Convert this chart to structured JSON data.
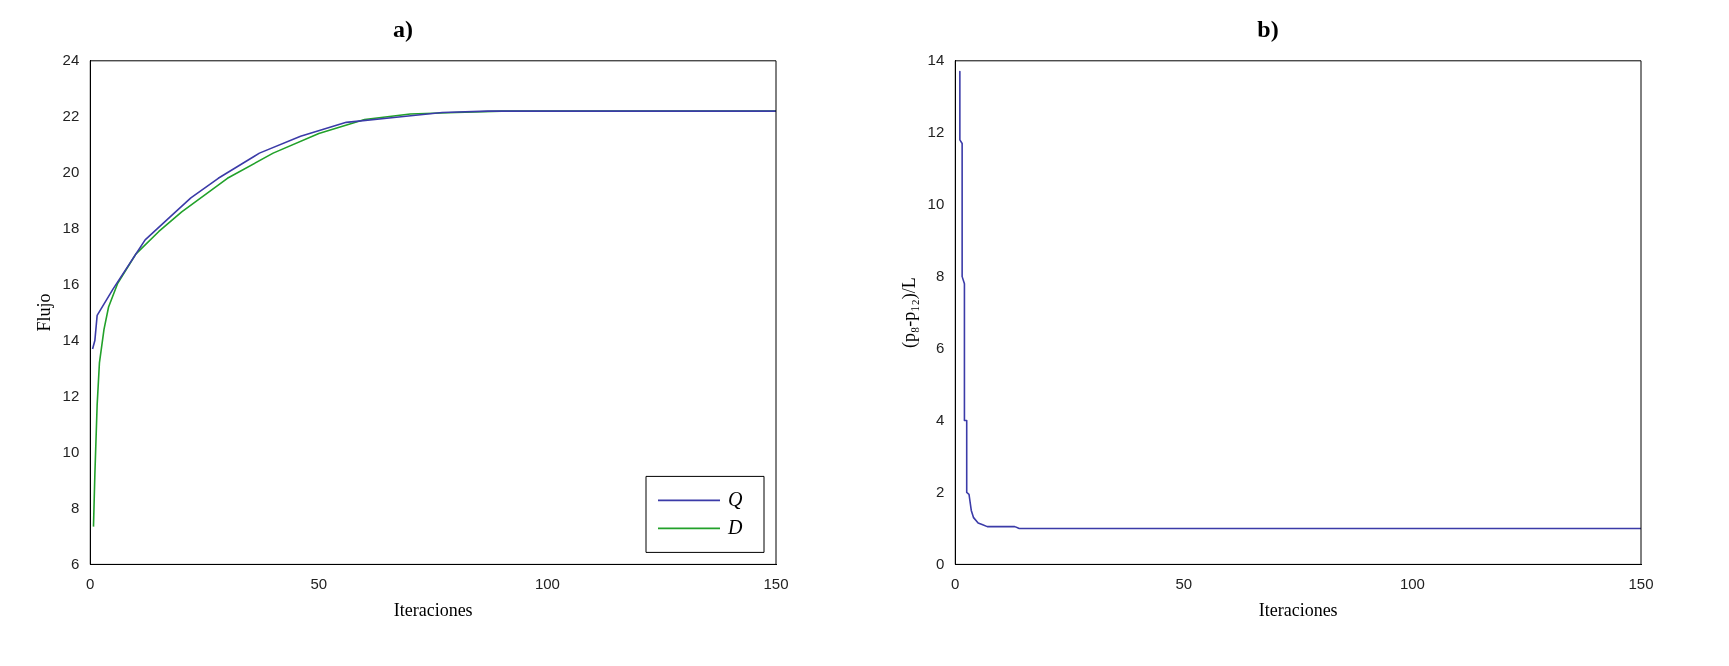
{
  "chart_data": [
    {
      "type": "line",
      "title": "a)",
      "xlabel": "Iteraciones",
      "ylabel": "Flujo",
      "xlim": [
        0,
        150
      ],
      "xticks": [
        0,
        50,
        100,
        150
      ],
      "ylim": [
        6,
        24
      ],
      "yticks": [
        6,
        8,
        10,
        12,
        14,
        16,
        18,
        20,
        22,
        24
      ],
      "legend": "bottom right",
      "series": [
        {
          "name": "Q",
          "color": "#3b3ba8",
          "x": [
            0.5,
            1,
            1.5,
            5,
            7,
            12,
            18,
            22,
            28,
            37,
            46,
            56,
            68,
            77,
            87,
            150
          ],
          "values": [
            13.7,
            14,
            14.9,
            15.85,
            16.35,
            17.6,
            18.5,
            19.1,
            19.8,
            20.7,
            21.3,
            21.8,
            22,
            22.15,
            22.2,
            22.2
          ]
        },
        {
          "name": "D",
          "color": "#22a12a",
          "x": [
            0.7,
            1,
            1.5,
            2,
            3,
            4,
            6,
            10,
            15,
            20,
            30,
            40,
            50,
            60,
            70,
            80,
            90,
            150
          ],
          "values": [
            7.35,
            9.2,
            11.7,
            13.2,
            14.4,
            15.2,
            16.05,
            17.1,
            17.9,
            18.6,
            19.8,
            20.7,
            21.4,
            21.9,
            22.1,
            22.15,
            22.2,
            22.2
          ]
        }
      ]
    },
    {
      "type": "line",
      "title": "b)",
      "xlabel": "Iteraciones",
      "ylabel": "(p₈-p₁₂)/L",
      "xlim": [
        0,
        150
      ],
      "xticks": [
        0,
        50,
        100,
        150
      ],
      "ylim": [
        0,
        14
      ],
      "yticks": [
        0,
        2,
        4,
        6,
        8,
        10,
        12,
        14
      ],
      "series": [
        {
          "color": "#3b3ba8",
          "x": [
            1,
            1,
            1.5,
            1.5,
            2,
            2,
            2.5,
            2.5,
            3,
            3.5,
            4,
            5,
            6,
            7,
            13,
            14,
            150
          ],
          "values": [
            13.7,
            11.8,
            11.7,
            8,
            7.8,
            4,
            4,
            2,
            1.95,
            1.5,
            1.3,
            1.15,
            1.1,
            1.05,
            1.05,
            1,
            1
          ]
        }
      ]
    }
  ]
}
